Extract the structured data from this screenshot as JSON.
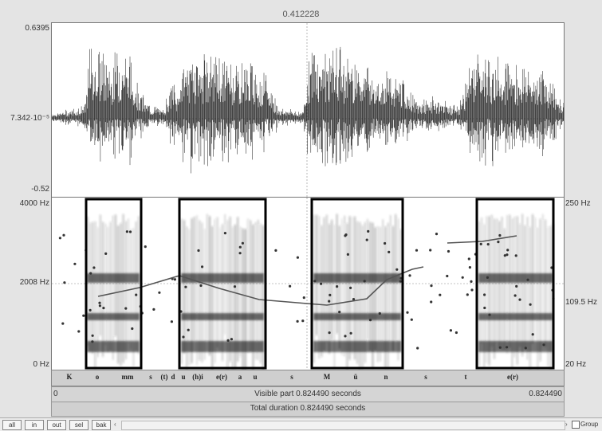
{
  "cursor_time": "0.412228",
  "waveform": {
    "y_max_label": "0.6395",
    "y_mid_label": "7.342·10⁻⁵",
    "y_min_label": "-0.52"
  },
  "spectrogram": {
    "freq_top_label": "4000 Hz",
    "freq_mid_label": "2008 Hz",
    "freq_bottom_label": "0 Hz",
    "pitch_top_label": "250 Hz",
    "pitch_mid_label": "109.5 Hz",
    "pitch_bottom_label": "20 Hz"
  },
  "tier": {
    "segments": [
      "K",
      "o",
      "mm",
      "s",
      "(t)",
      "d",
      "u",
      "(h)i",
      "e(r)",
      "a",
      "u",
      "s",
      "M",
      "ü",
      "n",
      "s",
      "t",
      "e(r)"
    ]
  },
  "visible_part": {
    "start": "0",
    "label": "Visible part 0.824490 seconds",
    "end": "0.824490"
  },
  "total_duration": {
    "label": "Total duration 0.824490 seconds"
  },
  "toolbar": {
    "buttons": [
      "all",
      "in",
      "out",
      "sel",
      "bak"
    ],
    "scroll_left": "‹",
    "scroll_right": "›",
    "group_label": "Group"
  }
}
